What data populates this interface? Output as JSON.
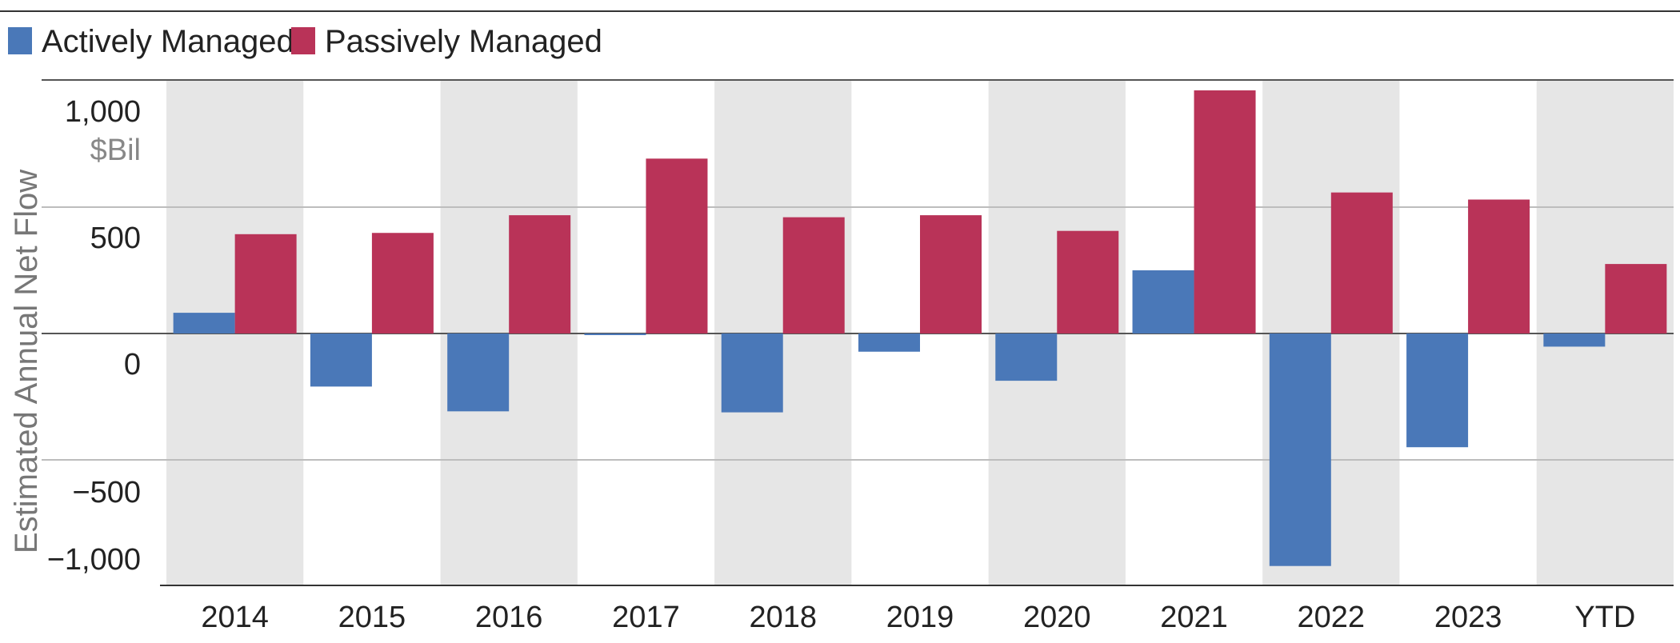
{
  "chart_data": {
    "type": "bar",
    "categories": [
      "2014",
      "2015",
      "2016",
      "2017",
      "2018",
      "2019",
      "2020",
      "2021",
      "2022",
      "2023",
      "YTD"
    ],
    "series": [
      {
        "name": "Actively Managed",
        "color": "#4a78b8",
        "values": [
          82,
          -210,
          -308,
          -4,
          -312,
          -72,
          -187,
          250,
          -920,
          -450,
          -52
        ]
      },
      {
        "name": "Passively Managed",
        "color": "#b93358",
        "values": [
          393,
          398,
          468,
          692,
          460,
          468,
          406,
          962,
          558,
          530,
          275
        ]
      }
    ],
    "title": "",
    "xlabel": "",
    "ylabel": "Estimated Annual Net Flow",
    "y_unit": "$Bil",
    "ylim": [
      -1000,
      1000
    ],
    "yticks": [
      {
        "value": 1000,
        "label": "1,000"
      },
      {
        "value": 500,
        "label": "500"
      },
      {
        "value": 0,
        "label": "0"
      },
      {
        "value": -500,
        "label": "−500"
      },
      {
        "value": -1000,
        "label": "−1,000"
      }
    ],
    "grid": true,
    "legend_position": "top-left",
    "band_color": "#e6e6e6"
  }
}
